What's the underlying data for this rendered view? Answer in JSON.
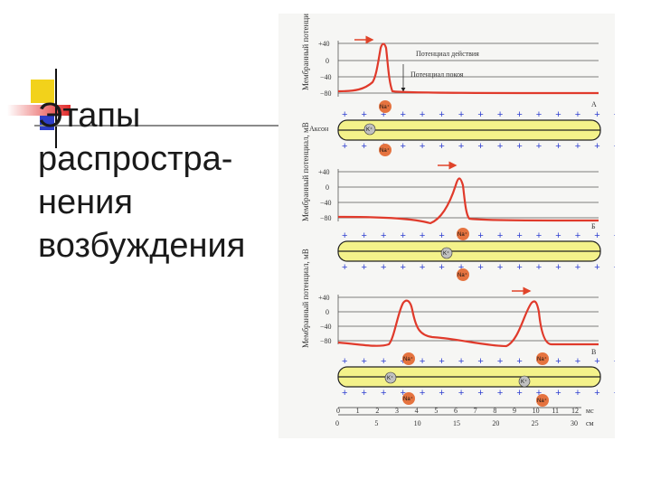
{
  "title": {
    "line1": "Этапы",
    "line2": "распростра-",
    "line3": "нения",
    "line4": "возбуждения"
  },
  "figure": {
    "panels": [
      {
        "y_axis_label": "Мембранный потенциал, мВ",
        "ticks": [
          "+40",
          "0",
          "−40",
          "−80"
        ],
        "legend_action": "Потенциал действия",
        "legend_rest": "Потенциал покоя",
        "axon_label": "Аксон",
        "letter": "А"
      },
      {
        "y_axis_label": "Мембранный потенциал, мВ",
        "ticks": [
          "+40",
          "0",
          "−40",
          "−80"
        ],
        "letter": "Б"
      },
      {
        "y_axis_label": "Мембранный потенциал, мВ",
        "ticks": [
          "+40",
          "0",
          "−40",
          "−80"
        ],
        "letter": "В"
      }
    ],
    "ions": {
      "na": "Na⁺",
      "k": "K⁺"
    },
    "time_axis": {
      "values": [
        "0",
        "1",
        "2",
        "3",
        "4",
        "5",
        "6",
        "7",
        "8",
        "9",
        "10",
        "11",
        "12"
      ],
      "unit": "мс"
    },
    "distance_axis": {
      "values": [
        "0",
        "5",
        "10",
        "15",
        "20",
        "25",
        "30"
      ],
      "unit": "см"
    }
  }
}
